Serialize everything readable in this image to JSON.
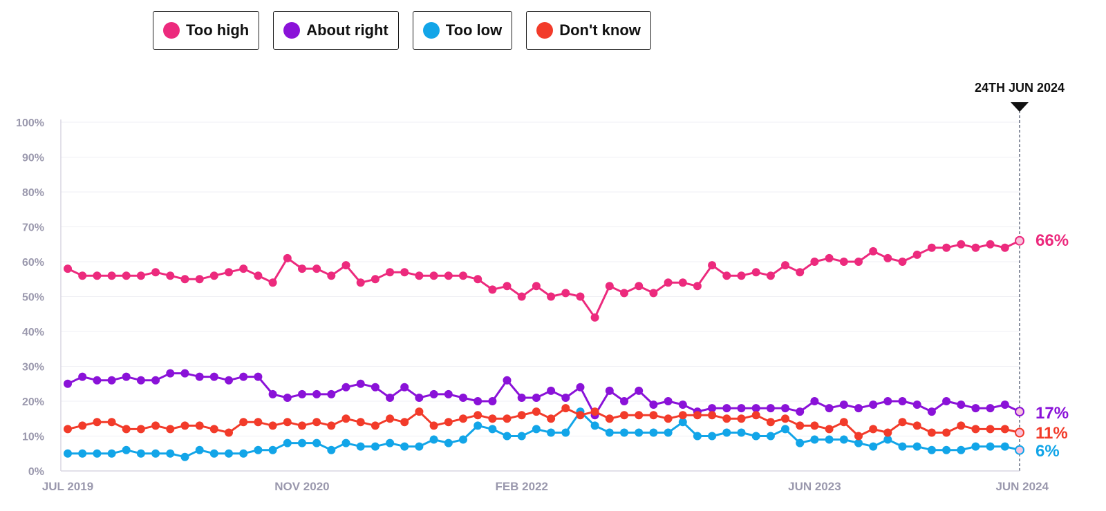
{
  "chart_data": {
    "type": "line",
    "title": "",
    "xlabel": "",
    "ylabel": "",
    "ylim": [
      0,
      100
    ],
    "y_ticks": [
      "0%",
      "10%",
      "20%",
      "30%",
      "40%",
      "50%",
      "60%",
      "70%",
      "80%",
      "90%",
      "100%"
    ],
    "x_tick_labels": [
      "JUL 2019",
      "NOV 2020",
      "FEB 2022",
      "JUN 2023",
      "JUN 2024"
    ],
    "grid": true,
    "legend_position": "top-left",
    "marker": {
      "label": "24TH JUN 2024"
    },
    "series": [
      {
        "name": "Too high",
        "color": "#ec2a7d",
        "end_label": "66%",
        "values": [
          58,
          56,
          56,
          56,
          56,
          56,
          57,
          56,
          55,
          55,
          56,
          57,
          58,
          56,
          54,
          61,
          58,
          58,
          56,
          59,
          54,
          55,
          57,
          57,
          56,
          56,
          56,
          56,
          55,
          52,
          53,
          50,
          53,
          50,
          51,
          50,
          44,
          53,
          51,
          53,
          51,
          54,
          54,
          53,
          59,
          56,
          56,
          57,
          56,
          59,
          57,
          60,
          61,
          60,
          60,
          63,
          61,
          60,
          62,
          64,
          64,
          65,
          64,
          65,
          64,
          66
        ]
      },
      {
        "name": "About right",
        "color": "#8a12d8",
        "end_label": "17%",
        "values": [
          25,
          27,
          26,
          26,
          27,
          26,
          26,
          28,
          28,
          27,
          27,
          26,
          27,
          27,
          22,
          21,
          22,
          22,
          22,
          24,
          25,
          24,
          21,
          24,
          21,
          22,
          22,
          21,
          20,
          20,
          26,
          21,
          21,
          23,
          21,
          24,
          16,
          23,
          20,
          23,
          19,
          20,
          19,
          17,
          18,
          18,
          18,
          18,
          18,
          18,
          17,
          20,
          18,
          19,
          18,
          19,
          20,
          20,
          19,
          17,
          20,
          19,
          18,
          18,
          19,
          17
        ]
      },
      {
        "name": "Too low",
        "color": "#12a5e8",
        "end_label": "6%",
        "values": [
          5,
          5,
          5,
          5,
          6,
          5,
          5,
          5,
          4,
          6,
          5,
          5,
          5,
          6,
          6,
          8,
          8,
          8,
          6,
          8,
          7,
          7,
          8,
          7,
          7,
          9,
          8,
          9,
          13,
          12,
          10,
          10,
          12,
          11,
          11,
          17,
          13,
          11,
          11,
          11,
          11,
          11,
          14,
          10,
          10,
          11,
          11,
          10,
          10,
          12,
          8,
          9,
          9,
          9,
          8,
          7,
          9,
          7,
          7,
          6,
          6,
          6,
          7,
          7,
          7,
          6
        ]
      },
      {
        "name": "Don't know",
        "color": "#f23b2a",
        "end_label": "11%",
        "values": [
          12,
          13,
          14,
          14,
          12,
          12,
          13,
          12,
          13,
          13,
          12,
          11,
          14,
          14,
          13,
          14,
          13,
          14,
          13,
          15,
          14,
          13,
          15,
          14,
          17,
          13,
          14,
          15,
          16,
          15,
          15,
          16,
          17,
          15,
          18,
          16,
          17,
          15,
          16,
          16,
          16,
          15,
          16,
          16,
          16,
          15,
          15,
          16,
          14,
          15,
          13,
          13,
          12,
          14,
          10,
          12,
          11,
          14,
          13,
          11,
          11,
          13,
          12,
          12,
          12,
          11
        ]
      }
    ]
  }
}
